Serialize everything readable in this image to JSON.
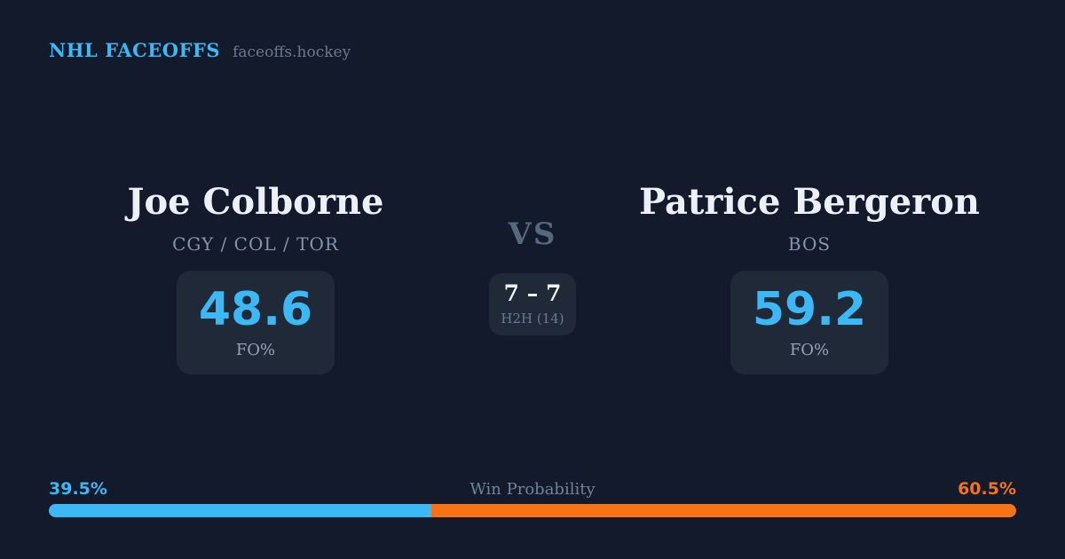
{
  "header": {
    "brand": "NHL FACEOFFS",
    "domain": "faceoffs.hockey"
  },
  "matchup": {
    "vs_label": "VS",
    "h2h": {
      "score": "7 – 7",
      "label": "H2H (14)"
    },
    "players": [
      {
        "name": "Joe Colborne",
        "teams": "CGY / COL / TOR",
        "stat_value": "48.6",
        "stat_label": "FO%"
      },
      {
        "name": "Patrice Bergeron",
        "teams": "BOS",
        "stat_value": "59.2",
        "stat_label": "FO%"
      }
    ]
  },
  "win_probability": {
    "label": "Win Probability",
    "left": {
      "pct_label": "39.5%",
      "value": 39.5,
      "color": "#3cb9f4"
    },
    "right": {
      "pct_label": "60.5%",
      "value": 60.5,
      "color": "#f97316"
    }
  },
  "colors": {
    "background": "#121a2b",
    "panel": "#1f2938",
    "accent_blue": "#3cb9f4",
    "accent_orange": "#f97316"
  }
}
